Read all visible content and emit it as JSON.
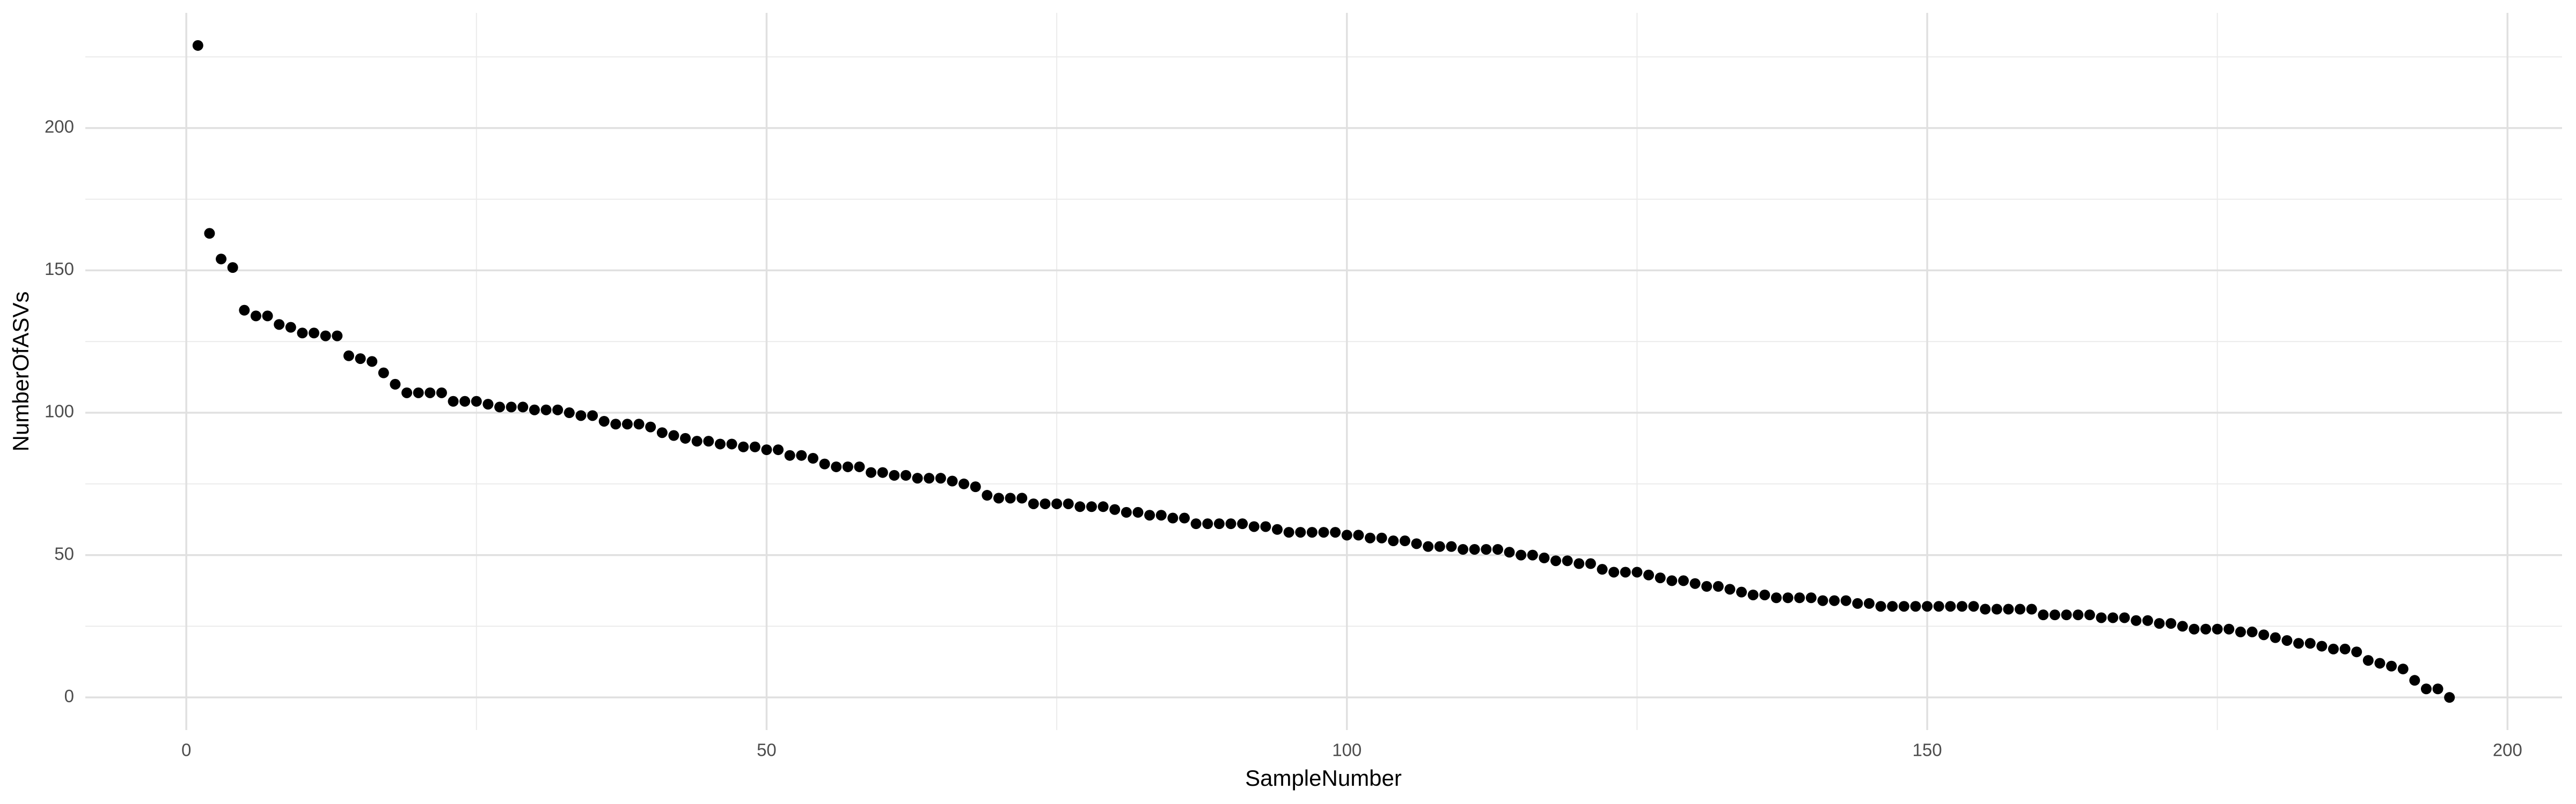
{
  "chart_data": {
    "type": "scatter",
    "x_label": "SampleNumber",
    "y_label": "NumberOfASVs",
    "x": [
      1,
      2,
      3,
      4,
      5,
      6,
      7,
      8,
      9,
      10,
      11,
      12,
      13,
      14,
      15,
      16,
      17,
      18,
      19,
      20,
      21,
      22,
      23,
      24,
      25,
      26,
      27,
      28,
      29,
      30,
      31,
      32,
      33,
      34,
      35,
      36,
      37,
      38,
      39,
      40,
      41,
      42,
      43,
      44,
      45,
      46,
      47,
      48,
      49,
      50,
      51,
      52,
      53,
      54,
      55,
      56,
      57,
      58,
      59,
      60,
      61,
      62,
      63,
      64,
      65,
      66,
      67,
      68,
      69,
      70,
      71,
      72,
      73,
      74,
      75,
      76,
      77,
      78,
      79,
      80,
      81,
      82,
      83,
      84,
      85,
      86,
      87,
      88,
      89,
      90,
      91,
      92,
      93,
      94,
      95,
      96,
      97,
      98,
      99,
      100,
      101,
      102,
      103,
      104,
      105,
      106,
      107,
      108,
      109,
      110,
      111,
      112,
      113,
      114,
      115,
      116,
      117,
      118,
      119,
      120,
      121,
      122,
      123,
      124,
      125,
      126,
      127,
      128,
      129,
      130,
      131,
      132,
      133,
      134,
      135,
      136,
      137,
      138,
      139,
      140,
      141,
      142,
      143,
      144,
      145,
      146,
      147,
      148,
      149,
      150,
      151,
      152,
      153,
      154,
      155,
      156,
      157,
      158,
      159,
      160,
      161,
      162,
      163,
      164,
      165,
      166,
      167,
      168,
      169,
      170,
      171,
      172,
      173,
      174,
      175,
      176,
      177,
      178,
      179,
      180,
      181,
      182,
      183,
      184,
      185,
      186,
      187,
      188,
      189,
      190,
      191,
      192,
      193,
      194,
      195
    ],
    "values": [
      229,
      163,
      154,
      151,
      136,
      134,
      134,
      131,
      130,
      128,
      128,
      127,
      127,
      120,
      119,
      118,
      114,
      110,
      107,
      107,
      107,
      107,
      104,
      104,
      104,
      103,
      102,
      102,
      102,
      101,
      101,
      101,
      100,
      99,
      99,
      97,
      96,
      96,
      96,
      95,
      93,
      92,
      91,
      90,
      90,
      89,
      89,
      88,
      88,
      87,
      87,
      85,
      85,
      84,
      82,
      81,
      81,
      81,
      79,
      79,
      78,
      78,
      77,
      77,
      77,
      76,
      75,
      74,
      71,
      70,
      70,
      70,
      68,
      68,
      68,
      68,
      67,
      67,
      67,
      66,
      65,
      65,
      64,
      64,
      63,
      63,
      61,
      61,
      61,
      61,
      61,
      60,
      60,
      59,
      58,
      58,
      58,
      58,
      58,
      57,
      57,
      56,
      56,
      55,
      55,
      54,
      53,
      53,
      53,
      52,
      52,
      52,
      52,
      51,
      50,
      50,
      49,
      48,
      48,
      47,
      47,
      45,
      44,
      44,
      44,
      43,
      42,
      41,
      41,
      40,
      39,
      39,
      38,
      37,
      36,
      36,
      35,
      35,
      35,
      35,
      34,
      34,
      34,
      33,
      33,
      32,
      32,
      32,
      32,
      32,
      32,
      32,
      32,
      32,
      31,
      31,
      31,
      31,
      31,
      29,
      29,
      29,
      29,
      29,
      28,
      28,
      28,
      27,
      27,
      26,
      26,
      25,
      24,
      24,
      24,
      24,
      23,
      23,
      22,
      21,
      20,
      19,
      19,
      18,
      17,
      17,
      16,
      13,
      12,
      11,
      10,
      6,
      3,
      3,
      0
    ],
    "color": "#000000",
    "xlim": [
      -8.7,
      204.7
    ],
    "ylim": [
      -11.45,
      240.45
    ],
    "xticks": [
      0,
      50,
      100,
      150,
      200
    ],
    "yticks": [
      0,
      50,
      100,
      150,
      200
    ],
    "x_minor_grid": [
      25,
      75,
      125,
      175
    ],
    "y_minor_grid": [
      25,
      75,
      125,
      175,
      225
    ],
    "grid": true
  }
}
